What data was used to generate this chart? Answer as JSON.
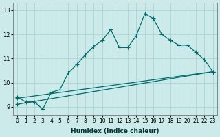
{
  "xlabel": "Humidex (Indice chaleur)",
  "xlim": [
    -0.5,
    23.5
  ],
  "ylim": [
    8.65,
    13.3
  ],
  "yticks": [
    9,
    10,
    11,
    12,
    13
  ],
  "xticks": [
    0,
    1,
    2,
    3,
    4,
    5,
    6,
    7,
    8,
    9,
    10,
    11,
    12,
    13,
    14,
    15,
    16,
    17,
    18,
    19,
    20,
    21,
    22,
    23
  ],
  "bg_color": "#cceaea",
  "line_color": "#006b6b",
  "grid_color": "#aad5d5",
  "main_line": {
    "x": [
      0,
      1,
      2,
      3,
      4,
      5,
      6,
      7,
      8,
      9,
      10,
      11,
      12,
      13,
      14,
      15,
      16,
      17,
      18,
      19,
      20,
      21,
      22,
      23
    ],
    "y": [
      9.4,
      9.2,
      9.2,
      8.9,
      9.6,
      9.7,
      10.4,
      10.75,
      11.15,
      11.5,
      11.75,
      12.2,
      11.45,
      11.45,
      11.95,
      12.85,
      12.65,
      12.0,
      11.75,
      11.55,
      11.55,
      11.25,
      10.95,
      10.45
    ]
  },
  "straight_line1": {
    "x": [
      0,
      23
    ],
    "y": [
      9.35,
      10.45
    ]
  },
  "straight_line2": {
    "x": [
      0,
      23
    ],
    "y": [
      9.1,
      10.45
    ]
  }
}
